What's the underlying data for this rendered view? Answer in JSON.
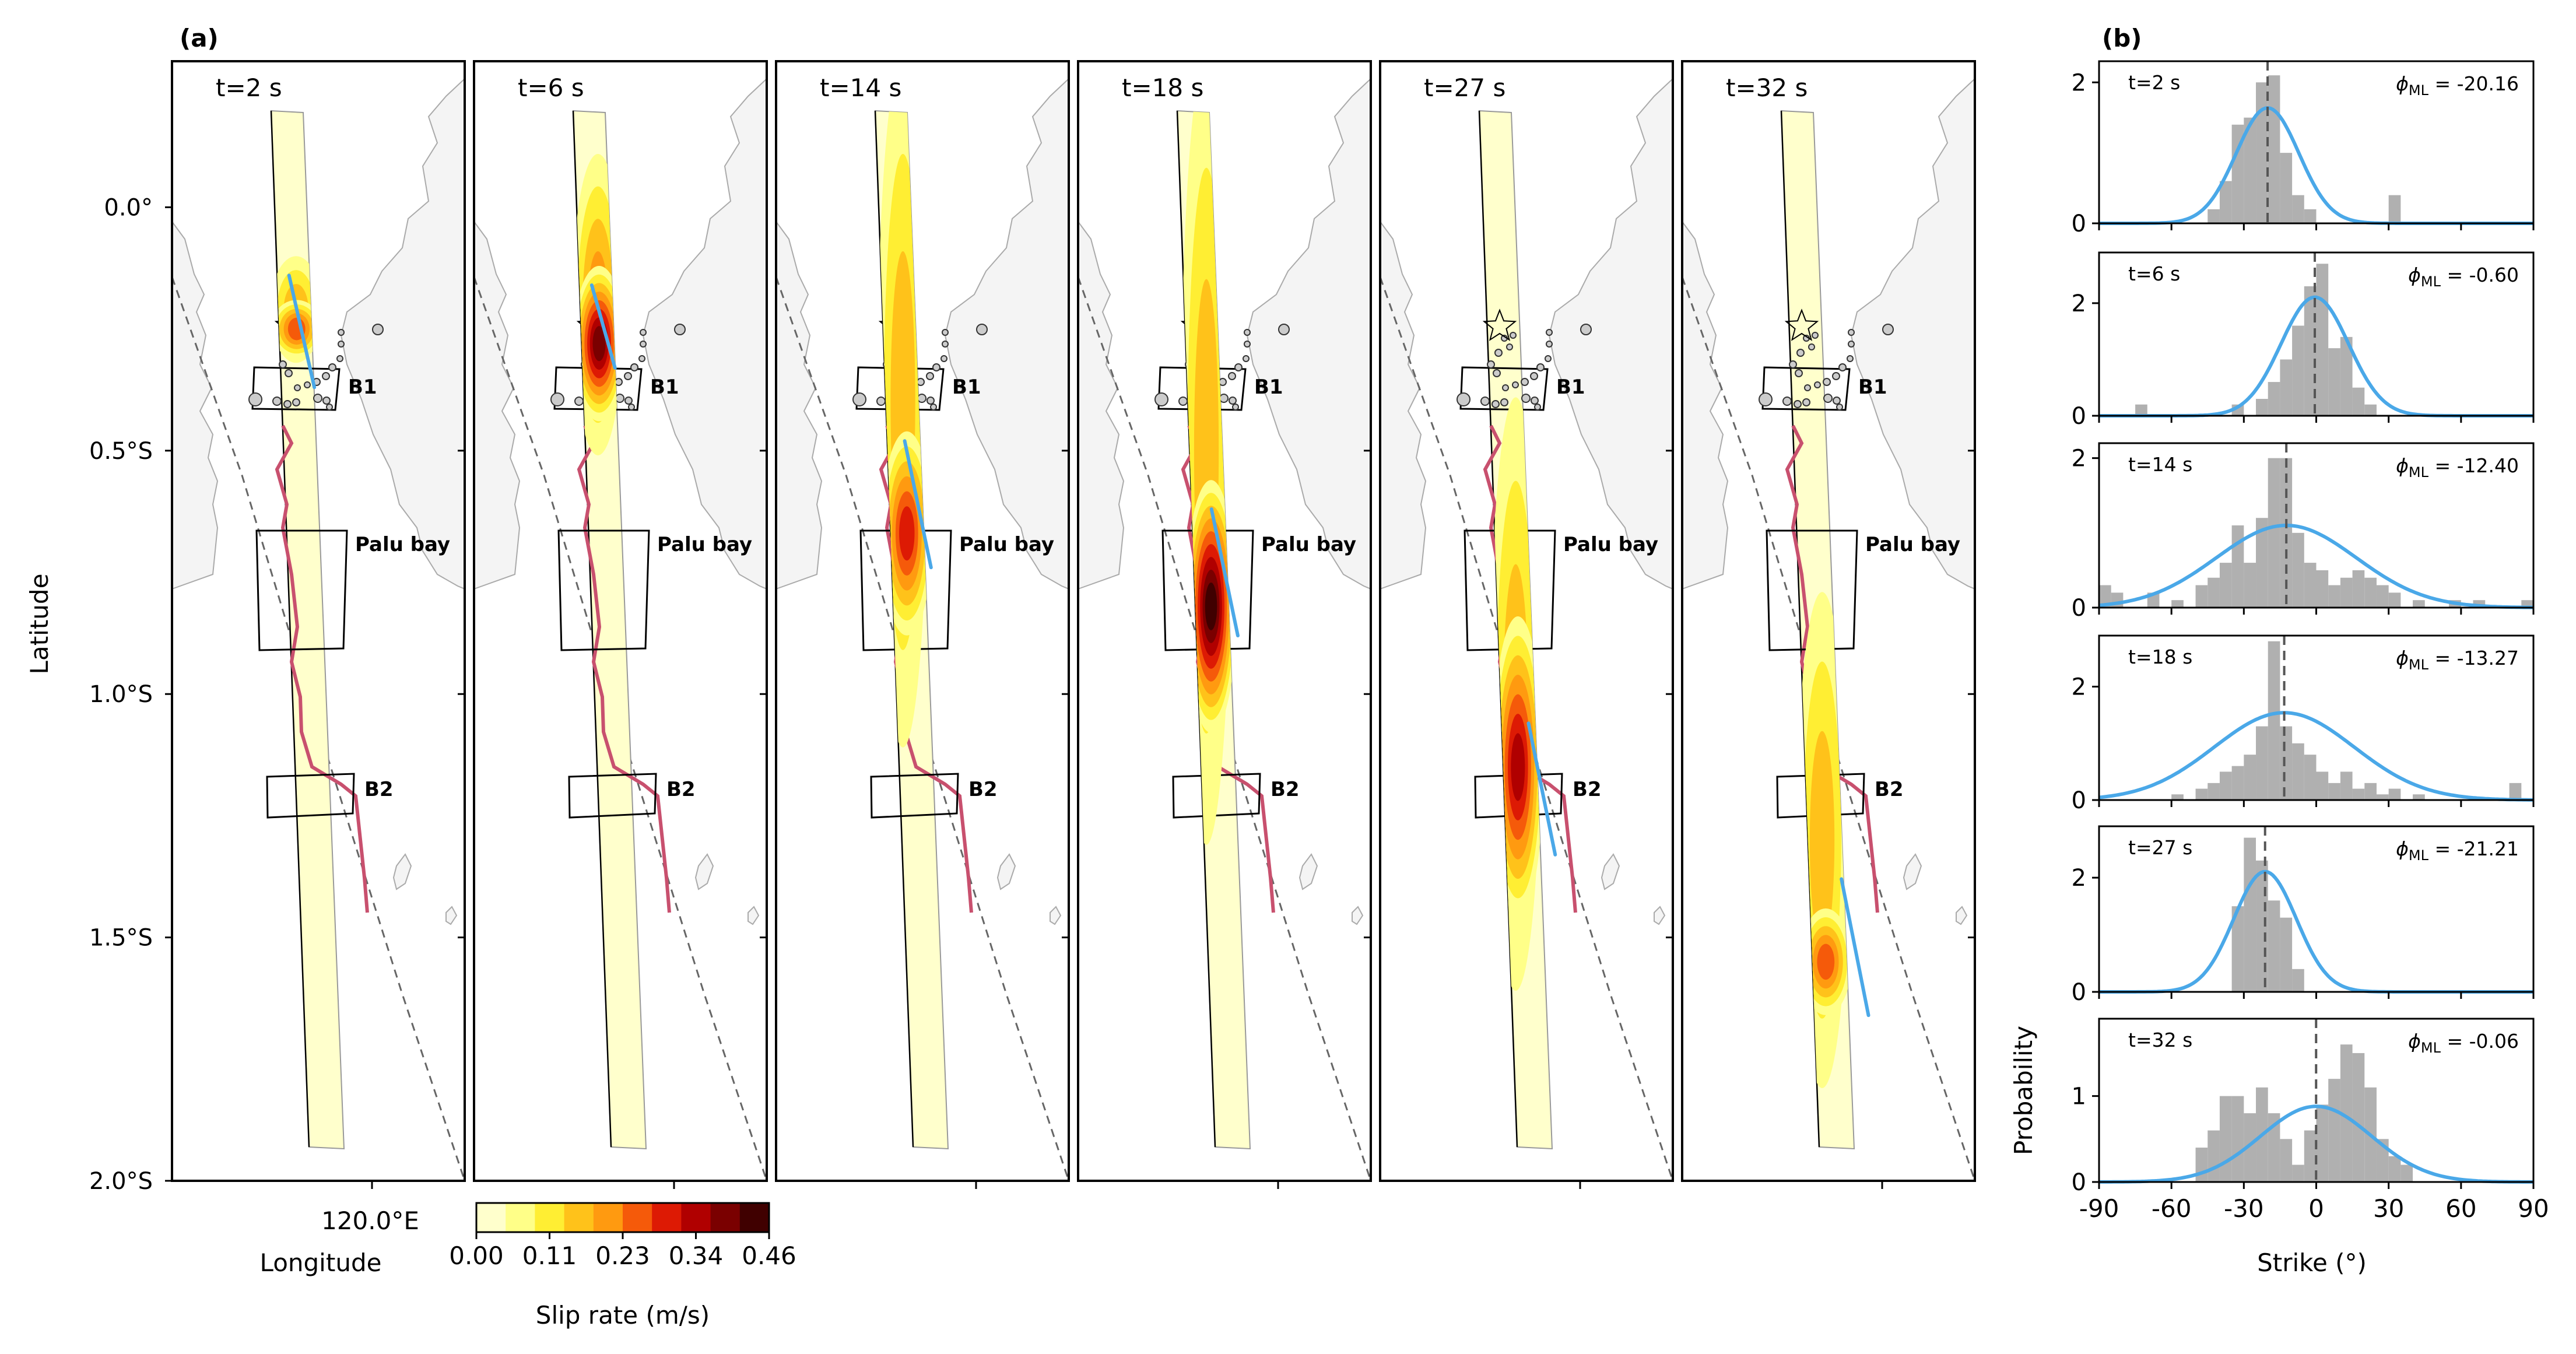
{
  "panel_a": {
    "label": "(a)",
    "ylabel": "Latitude",
    "xlabel": "Longitude",
    "y_ticks": [
      "0.0°",
      "0.5°S",
      "1.0°S",
      "1.5°S",
      "2.0°S"
    ],
    "x_tick": "120.0°E",
    "box_labels": [
      "B1",
      "Palu bay",
      "B2"
    ],
    "colorbar": {
      "label": "Slip rate (m/s)",
      "ticks": [
        "0.00",
        "0.11",
        "0.23",
        "0.34",
        "0.46"
      ],
      "colors": [
        "#ffffcc",
        "#ffff88",
        "#ffee33",
        "#ffc21a",
        "#ff9a10",
        "#f55a0a",
        "#dd1a04",
        "#b00000",
        "#7a0000",
        "#400000"
      ]
    },
    "snapshots": [
      {
        "time_label": "t=2 s",
        "slip": [
          {
            "y": 0.21,
            "r": 0.1,
            "level": 3
          },
          {
            "y": 0.25,
            "r": 0.05,
            "level": 5
          }
        ],
        "strike_line": {
          "lat1": 0.14,
          "lat2": 0.37
        }
      },
      {
        "time_label": "t=6 s",
        "slip": [
          {
            "y": 0.2,
            "r": 0.3,
            "level": 4
          },
          {
            "y": 0.28,
            "r": 0.15,
            "level": 8
          }
        ],
        "strike_line": {
          "lat1": 0.16,
          "lat2": 0.33
        }
      },
      {
        "time_label": "t=14 s",
        "slip": [
          {
            "y": 0.4,
            "r": 0.7,
            "level": 3
          },
          {
            "y": 0.67,
            "r": 0.2,
            "level": 6
          }
        ],
        "strike_line": {
          "lat1": 0.48,
          "lat2": 0.74
        }
      },
      {
        "time_label": "t=18 s",
        "slip": [
          {
            "y": 0.5,
            "r": 0.8,
            "level": 3
          },
          {
            "y": 0.82,
            "r": 0.25,
            "level": 9
          }
        ],
        "strike_line": {
          "lat1": 0.62,
          "lat2": 0.88
        }
      },
      {
        "time_label": "t=27 s",
        "slip": [
          {
            "y": 1.0,
            "r": 0.6,
            "level": 3
          },
          {
            "y": 1.15,
            "r": 0.3,
            "level": 7
          }
        ],
        "strike_line": {
          "lat1": 1.06,
          "lat2": 1.33
        }
      },
      {
        "time_label": "t=32 s",
        "slip": [
          {
            "y": 1.3,
            "r": 0.5,
            "level": 3
          },
          {
            "y": 1.55,
            "r": 0.1,
            "level": 5
          }
        ],
        "strike_line": {
          "lat1": 1.38,
          "lat2": 1.66
        }
      }
    ]
  },
  "chart_data": {
    "type": "bar",
    "panel_label": "(b)",
    "xlabel": "Strike (°)",
    "ylabel": "Probability",
    "xlim": [
      -90,
      90
    ],
    "x_ticks": [
      "-90",
      "-60",
      "-30",
      "0",
      "30",
      "60",
      "90"
    ],
    "subplots": [
      {
        "time_label": "t=2 s",
        "phi_label": "-20.16",
        "phi_ml": -20.16,
        "sigma": 13,
        "ylim": [
          0,
          2.3
        ],
        "y_ticks": [
          "0",
          "2"
        ],
        "bins": [
          [
            -45,
            -40,
            0.2
          ],
          [
            -40,
            -35,
            0.6
          ],
          [
            -35,
            -30,
            1.4
          ],
          [
            -30,
            -25,
            1.5
          ],
          [
            -25,
            -20,
            2.0
          ],
          [
            -20,
            -15,
            2.1
          ],
          [
            -15,
            -10,
            1.0
          ],
          [
            -10,
            -5,
            0.4
          ],
          [
            -5,
            0,
            0.2
          ],
          [
            30,
            35,
            0.4
          ]
        ]
      },
      {
        "time_label": "t=6 s",
        "phi_label": "-0.60",
        "phi_ml": -0.6,
        "sigma": 14,
        "ylim": [
          0,
          2.9
        ],
        "y_ticks": [
          "0",
          "2"
        ],
        "bins": [
          [
            -75,
            -70,
            0.2
          ],
          [
            -35,
            -30,
            0.2
          ],
          [
            -25,
            -20,
            0.3
          ],
          [
            -20,
            -15,
            0.6
          ],
          [
            -15,
            -10,
            1.0
          ],
          [
            -10,
            -5,
            1.6
          ],
          [
            -5,
            0,
            2.3
          ],
          [
            0,
            5,
            2.7
          ],
          [
            5,
            10,
            1.2
          ],
          [
            10,
            15,
            1.4
          ],
          [
            15,
            20,
            0.5
          ],
          [
            20,
            25,
            0.2
          ]
        ]
      },
      {
        "time_label": "t=14 s",
        "phi_label": "-12.40",
        "phi_ml": -12.4,
        "sigma": 29,
        "ylim": [
          0,
          2.2
        ],
        "y_ticks": [
          "0",
          "2"
        ],
        "bins": [
          [
            -90,
            -85,
            0.3
          ],
          [
            -85,
            -80,
            0.2
          ],
          [
            -70,
            -65,
            0.2
          ],
          [
            -60,
            -55,
            0.1
          ],
          [
            -50,
            -45,
            0.3
          ],
          [
            -45,
            -40,
            0.4
          ],
          [
            -40,
            -35,
            0.6
          ],
          [
            -35,
            -30,
            1.1
          ],
          [
            -30,
            -25,
            0.6
          ],
          [
            -25,
            -20,
            1.2
          ],
          [
            -20,
            -15,
            2.0
          ],
          [
            -15,
            -10,
            2.0
          ],
          [
            -10,
            -5,
            1.0
          ],
          [
            -5,
            0,
            0.6
          ],
          [
            0,
            5,
            0.5
          ],
          [
            5,
            10,
            0.3
          ],
          [
            10,
            15,
            0.4
          ],
          [
            15,
            20,
            0.5
          ],
          [
            20,
            25,
            0.4
          ],
          [
            25,
            30,
            0.3
          ],
          [
            30,
            35,
            0.2
          ],
          [
            40,
            45,
            0.1
          ],
          [
            55,
            60,
            0.1
          ],
          [
            65,
            70,
            0.1
          ],
          [
            85,
            90,
            0.1
          ]
        ]
      },
      {
        "time_label": "t=18 s",
        "phi_label": "-13.27",
        "phi_ml": -13.27,
        "sigma": 29,
        "ylim": [
          0,
          2.9
        ],
        "y_ticks": [
          "0",
          "2"
        ],
        "bins": [
          [
            -60,
            -55,
            0.1
          ],
          [
            -50,
            -45,
            0.2
          ],
          [
            -45,
            -40,
            0.3
          ],
          [
            -40,
            -35,
            0.5
          ],
          [
            -35,
            -30,
            0.6
          ],
          [
            -30,
            -25,
            0.8
          ],
          [
            -25,
            -20,
            1.3
          ],
          [
            -20,
            -15,
            2.8
          ],
          [
            -15,
            -10,
            1.3
          ],
          [
            -10,
            -5,
            1.0
          ],
          [
            -5,
            0,
            0.8
          ],
          [
            0,
            5,
            0.5
          ],
          [
            5,
            10,
            0.3
          ],
          [
            10,
            15,
            0.5
          ],
          [
            15,
            20,
            0.2
          ],
          [
            20,
            25,
            0.3
          ],
          [
            25,
            30,
            0.1
          ],
          [
            30,
            35,
            0.2
          ],
          [
            40,
            45,
            0.1
          ],
          [
            80,
            85,
            0.3
          ]
        ]
      },
      {
        "time_label": "t=27 s",
        "phi_label": "-21.21",
        "phi_ml": -21.21,
        "sigma": 13,
        "ylim": [
          0,
          2.9
        ],
        "y_ticks": [
          "0",
          "2"
        ],
        "bins": [
          [
            -35,
            -30,
            1.5
          ],
          [
            -30,
            -25,
            2.7
          ],
          [
            -25,
            -20,
            2.3
          ],
          [
            -20,
            -15,
            1.6
          ],
          [
            -15,
            -10,
            1.3
          ],
          [
            -10,
            -5,
            0.4
          ]
        ]
      },
      {
        "time_label": "t=32 s",
        "phi_label": "-0.06",
        "phi_ml": -0.06,
        "sigma": 23,
        "ylim": [
          0,
          1.9
        ],
        "y_ticks": [
          "0",
          "1"
        ],
        "bins": [
          [
            -50,
            -45,
            0.4
          ],
          [
            -45,
            -40,
            0.6
          ],
          [
            -40,
            -35,
            1.0
          ],
          [
            -35,
            -30,
            1.0
          ],
          [
            -30,
            -25,
            0.8
          ],
          [
            -25,
            -20,
            1.1
          ],
          [
            -20,
            -15,
            0.8
          ],
          [
            -15,
            -10,
            0.5
          ],
          [
            -10,
            -5,
            0.2
          ],
          [
            -5,
            0,
            0.6
          ],
          [
            0,
            5,
            0.9
          ],
          [
            5,
            10,
            1.2
          ],
          [
            10,
            15,
            1.6
          ],
          [
            15,
            20,
            1.5
          ],
          [
            20,
            25,
            1.1
          ],
          [
            25,
            30,
            0.5
          ],
          [
            30,
            35,
            0.3
          ],
          [
            35,
            40,
            0.2
          ]
        ]
      }
    ]
  }
}
